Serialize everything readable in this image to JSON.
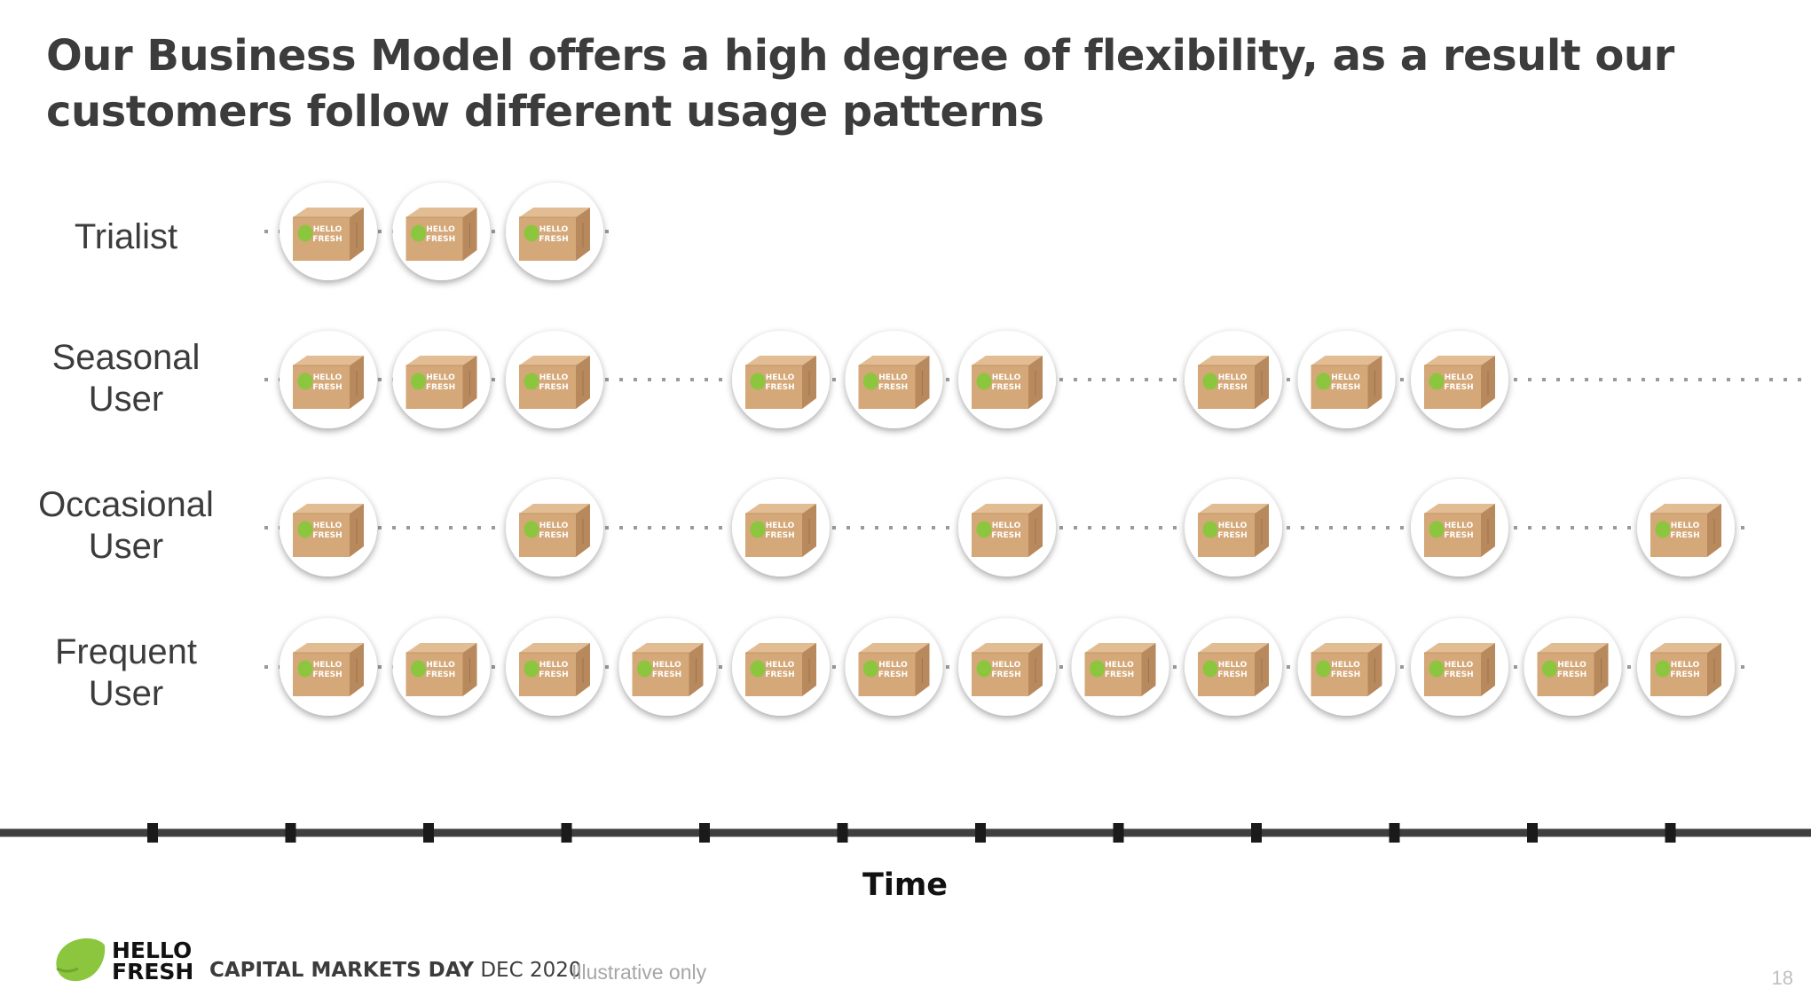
{
  "title": "Our Business Model offers a high degree of flexibility, as a result our customers follow different usage patterns",
  "rows": [
    {
      "label_line1": "Trialist",
      "label_line2": "",
      "deliveries": [
        1,
        2,
        3
      ],
      "line_end": 3
    },
    {
      "label_line1": "Seasonal",
      "label_line2": "User",
      "deliveries": [
        1,
        2,
        3,
        5,
        6,
        7,
        9,
        10,
        11
      ],
      "line_end": 13.5
    },
    {
      "label_line1": "Occasional",
      "label_line2": "User",
      "deliveries": [
        1,
        3,
        5,
        7,
        9,
        11,
        13
      ],
      "line_end": 13
    },
    {
      "label_line1": "Frequent",
      "label_line2": "User",
      "deliveries": [
        1,
        2,
        3,
        4,
        5,
        6,
        7,
        8,
        9,
        10,
        11,
        12,
        13
      ],
      "line_end": 13
    }
  ],
  "box_brand_line1": "HELLO",
  "box_brand_line2": "FRESH",
  "timeline": {
    "label": "Time",
    "ticks": 12
  },
  "footer": {
    "logo_line1": "HELLO",
    "logo_line2": "FRESH",
    "event_bold": "CAPITAL MARKETS DAY",
    "event_rest": " DEC 2020",
    "note": "Illustrative only",
    "page_number": "18"
  },
  "colors": {
    "lime": "#8cc63f",
    "box": "#d2a679",
    "dots": "#9a9a9a",
    "axis": "#3f3f3f",
    "text": "#3c3c3c"
  }
}
